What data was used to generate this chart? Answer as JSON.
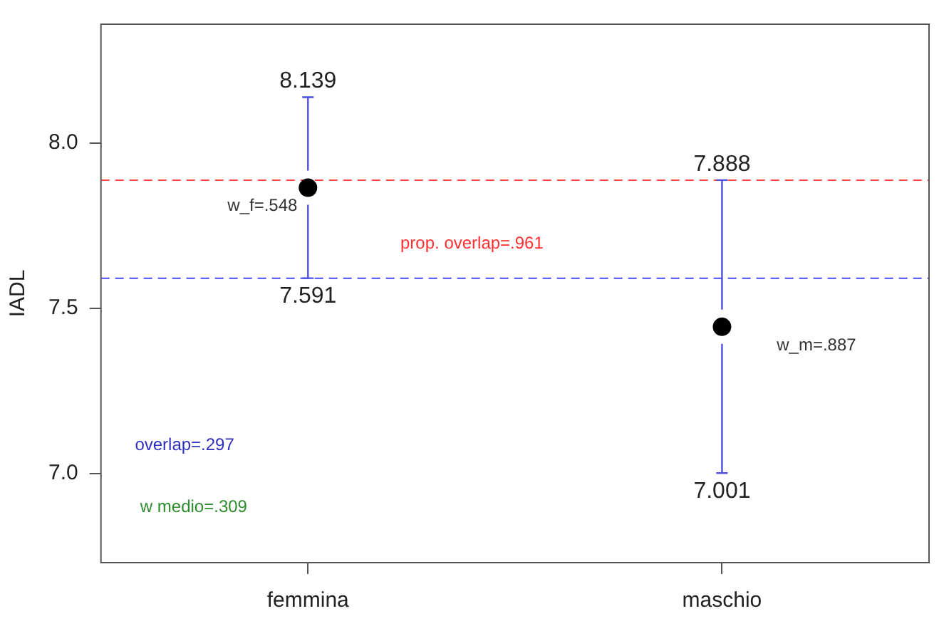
{
  "chart_data": {
    "type": "scatter",
    "ylabel": "IADL",
    "categories": [
      "femmina",
      "maschio"
    ],
    "series": [
      {
        "color": "#000000",
        "values": [
          7.865,
          7.444
        ],
        "errors": [
          [
            7.591,
            8.139
          ],
          [
            7.001,
            7.888
          ]
        ]
      }
    ],
    "ylim": [
      6.73,
      8.36
    ],
    "yticks": [
      {
        "value": 7.0,
        "label": "7.0"
      },
      {
        "value": 7.5,
        "label": "7.5"
      },
      {
        "value": 8.0,
        "label": "8.0"
      }
    ],
    "ref_lines": [
      {
        "axis": "y",
        "value": 7.888,
        "color": "#ff4a4a",
        "line_style": "dashed"
      },
      {
        "axis": "y",
        "value": 7.591,
        "color": "#4a4aff",
        "line_style": "dashed"
      }
    ],
    "annotations": [
      {
        "text": "8.139",
        "x": "femmina",
        "y": 8.139
      },
      {
        "text": "7.591",
        "x": "femmina",
        "y": 7.591
      },
      {
        "text": "7.888",
        "x": "maschio",
        "y": 7.888
      },
      {
        "text": "7.001",
        "x": "maschio",
        "y": 7.001
      },
      "w_f=.548",
      "prop. overlap=.961",
      "w_m=.887",
      "overlap=.297",
      "w medio=.309"
    ],
    "grid": false,
    "legend": false,
    "marker": "circle"
  }
}
